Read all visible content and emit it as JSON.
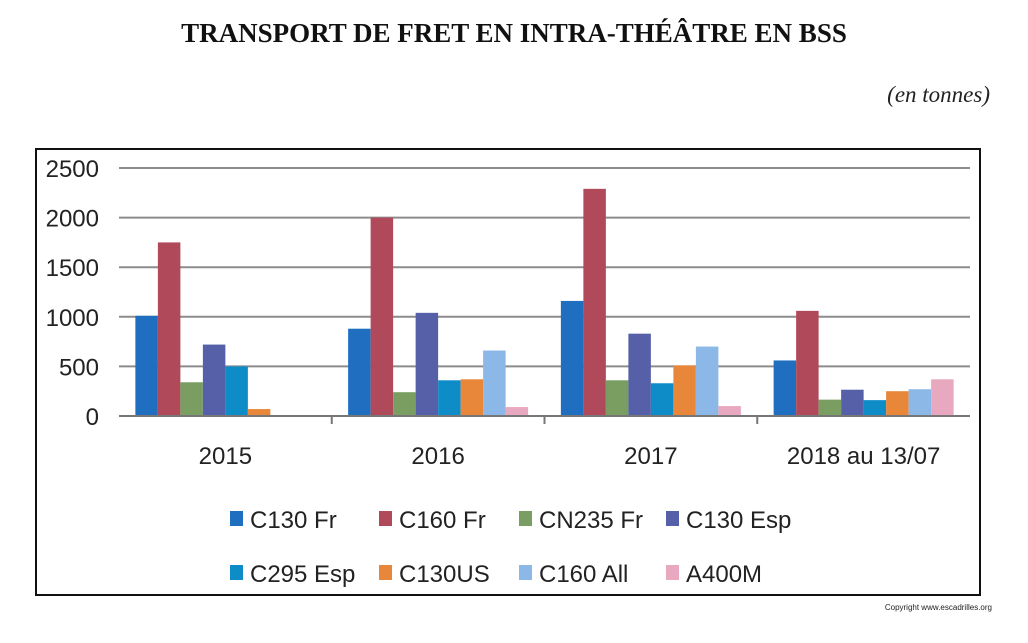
{
  "header": {
    "title": "TRANSPORT DE FRET EN INTRA-THÉÂTRE EN BSS",
    "unit": "(en tonnes)"
  },
  "footer": {
    "copyright": "Copyright www.escadrilles.org"
  },
  "chart_data": {
    "type": "bar",
    "title": "",
    "xlabel": "",
    "ylabel": "",
    "ylim": [
      0,
      2500
    ],
    "yticks": [
      0,
      500,
      1000,
      1500,
      2000,
      2500
    ],
    "grid": true,
    "legend_position": "bottom",
    "categories": [
      "2015",
      "2016",
      "2017",
      "2018 au 13/07"
    ],
    "series": [
      {
        "name": "C130 Fr",
        "color": "#1f6ec0",
        "values": [
          1010,
          880,
          1160,
          560
        ]
      },
      {
        "name": "C160 Fr",
        "color": "#b04a5a",
        "values": [
          1750,
          2000,
          2290,
          1060
        ]
      },
      {
        "name": "CN235 Fr",
        "color": "#7a9e62",
        "values": [
          340,
          240,
          360,
          165
        ]
      },
      {
        "name": "C130 Esp",
        "color": "#5560a8",
        "values": [
          720,
          1040,
          830,
          265
        ]
      },
      {
        "name": "C295 Esp",
        "color": "#0e8cc8",
        "values": [
          500,
          360,
          330,
          160
        ]
      },
      {
        "name": "C130US",
        "color": "#e8863a",
        "values": [
          70,
          370,
          510,
          250
        ]
      },
      {
        "name": "C160 All",
        "color": "#8cb8e8",
        "values": [
          5,
          660,
          700,
          270
        ]
      },
      {
        "name": "A400M",
        "color": "#e8a8c0",
        "values": [
          5,
          90,
          100,
          370
        ]
      }
    ]
  }
}
